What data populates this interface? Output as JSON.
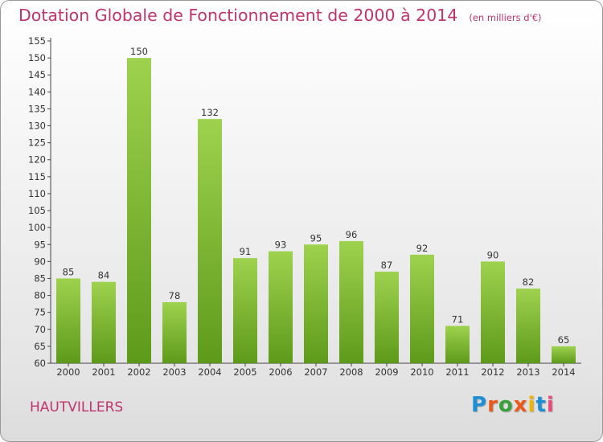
{
  "title": "Dotation Globale de Fonctionnement de 2000 à 2014",
  "unit_note": "(en milliers d'€)",
  "town": "HAUTVILLERS",
  "logo": {
    "text": "Proxiti",
    "colors": [
      "#1e8fd5",
      "#e8591a",
      "#3aa13a",
      "#e8591a",
      "#f0b400",
      "#1e8fd5",
      "#e84a7a"
    ]
  },
  "colors": {
    "title": "#c0336e",
    "bar_top": "#9ed24e",
    "bar_bottom": "#5e9a1a",
    "axis": "#444444"
  },
  "chart_data": {
    "type": "bar",
    "title": "Dotation Globale de Fonctionnement de 2000 à 2014",
    "subtitle": "(en milliers d'€)",
    "xlabel": "",
    "ylabel": "",
    "ylim": [
      60,
      155
    ],
    "ytick_step": 5,
    "grid": false,
    "legend": "none",
    "categories": [
      "2000",
      "2001",
      "2002",
      "2003",
      "2004",
      "2005",
      "2006",
      "2007",
      "2008",
      "2009",
      "2010",
      "2011",
      "2012",
      "2013",
      "2014"
    ],
    "values": [
      85,
      84,
      150,
      78,
      132,
      91,
      93,
      95,
      96,
      87,
      92,
      71,
      90,
      82,
      65
    ]
  }
}
